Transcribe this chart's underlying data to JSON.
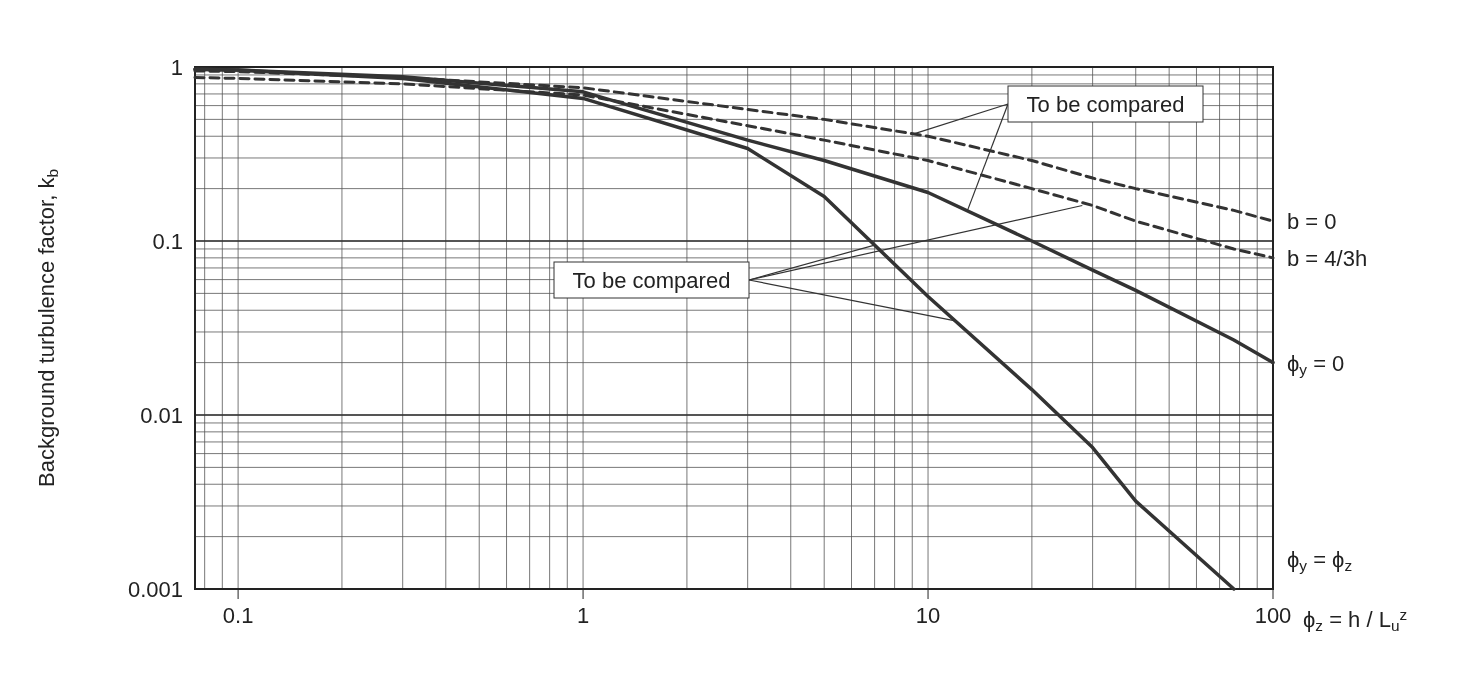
{
  "chart_data": {
    "type": "line",
    "xlabel": "ϕ$_{z}$ = h / L$_{u}$$^{z}$",
    "ylabel": "Background turbulence factor, k$_{b}$",
    "log": "xy",
    "grid": true,
    "xlim": [
      0.075,
      100
    ],
    "ylim": [
      0.001,
      1
    ],
    "xticks": [
      0.1,
      1,
      10,
      100
    ],
    "yticks": [
      0.001,
      0.01,
      0.1,
      1
    ],
    "x": [
      0.075,
      0.1,
      0.3,
      1,
      3,
      5,
      10,
      20,
      30,
      40,
      77,
      100
    ],
    "series": [
      {
        "name": "b = 0",
        "color": "#333333",
        "line_style": "dashed",
        "values": [
          0.95,
          0.94,
          0.87,
          0.76,
          0.57,
          0.5,
          0.4,
          0.29,
          0.23,
          0.2,
          0.15,
          0.13
        ]
      },
      {
        "name": "b = 4/3h",
        "color": "#333333",
        "line_style": "dashed",
        "values": [
          0.87,
          0.86,
          0.8,
          0.69,
          0.46,
          0.38,
          0.29,
          0.2,
          0.16,
          0.13,
          0.09,
          0.08
        ]
      },
      {
        "name": "ϕ$_{y}$ = 0",
        "color": "#333333",
        "line_style": "solid",
        "values": [
          0.97,
          0.96,
          0.88,
          0.72,
          0.38,
          0.29,
          0.19,
          0.1,
          0.068,
          0.052,
          0.027,
          0.02
        ]
      },
      {
        "name": "ϕ$_{y}$ = ϕ$_{z}$",
        "color": "#333333",
        "line_style": "solid",
        "values": [
          0.97,
          0.96,
          0.86,
          0.66,
          0.34,
          0.18,
          0.048,
          0.014,
          0.0065,
          0.0032,
          0.001,
          null
        ]
      }
    ],
    "annotations": [
      {
        "text": "To be compared",
        "x": 9,
        "y": 0.41
      },
      {
        "text": "To be compared",
        "x": 28,
        "y": 0.16
      }
    ]
  }
}
